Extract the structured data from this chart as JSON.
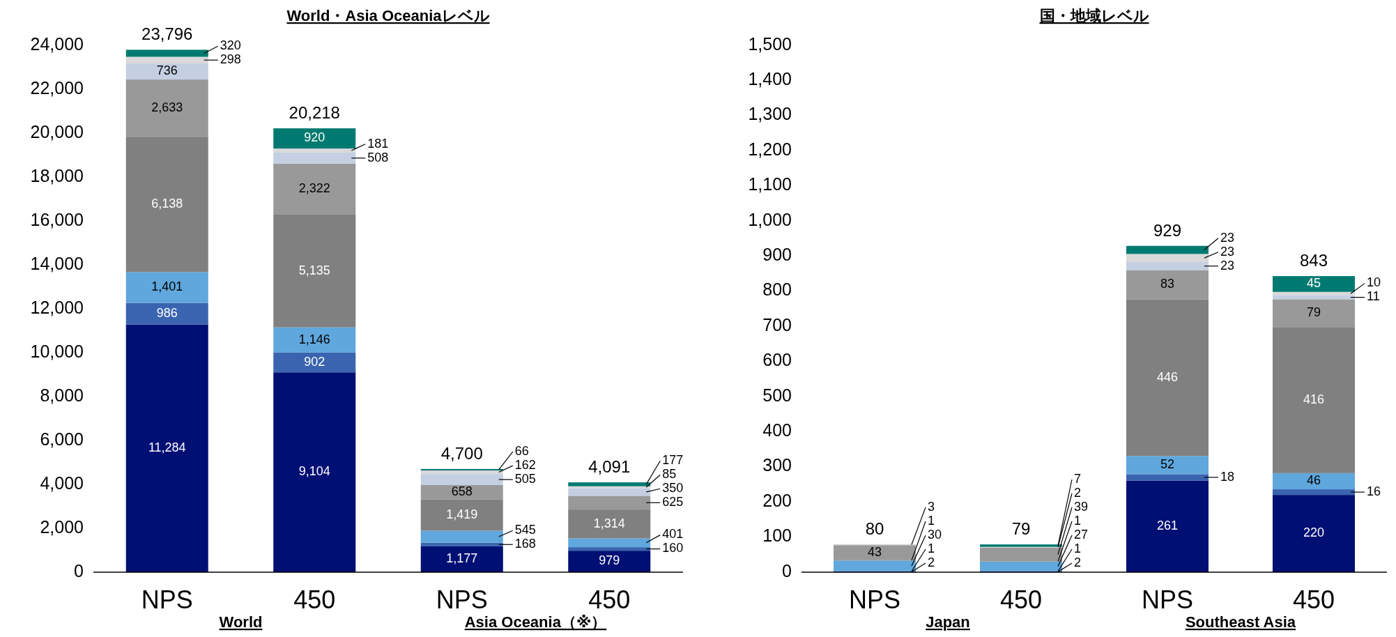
{
  "chart_data": [
    {
      "type": "bar",
      "stacked": true,
      "title": "World・Asia Oceaniaレベル",
      "categories": [
        "NPS",
        "450",
        "NPS",
        "450"
      ],
      "annotations": [
        "World",
        "Asia Oceania（※）"
      ],
      "ylim": [
        0,
        24000
      ],
      "yticks": [
        0,
        {
          "value": 2000,
          "label": "2,000"
        },
        {
          "value": 4000,
          "label": "4,000"
        },
        {
          "value": 6000,
          "label": "6,000"
        },
        {
          "value": 8000,
          "label": "8,000"
        },
        {
          "value": 10000,
          "label": "10,000"
        },
        {
          "value": 12000,
          "label": "12,000"
        },
        {
          "value": 14000,
          "label": "14,000"
        },
        {
          "value": 16000,
          "label": "16,000"
        },
        {
          "value": 18000,
          "label": "18,000"
        },
        {
          "value": 20000,
          "label": "20,000"
        },
        {
          "value": 22000,
          "label": "22,000"
        },
        {
          "value": 24000,
          "label": "24,000"
        }
      ],
      "totals": [
        "23,796",
        "20,218",
        "4,700",
        "4,091"
      ],
      "series": [
        {
          "color": "#000f73",
          "values": [
            11284,
            9104,
            1177,
            979
          ],
          "value_labels": [
            "11,284",
            "9,104",
            "1,177",
            "979"
          ]
        },
        {
          "color": "#3a64b0",
          "values": [
            986,
            902,
            168,
            160
          ],
          "value_labels": [
            "986",
            "902",
            "168",
            "160"
          ]
        },
        {
          "color": "#5fa7dc",
          "values": [
            1401,
            1146,
            545,
            401
          ],
          "value_labels": [
            "1,401",
            "1,146",
            "545",
            "401"
          ]
        },
        {
          "color": "#808080",
          "values": [
            6138,
            5135,
            1419,
            1314
          ],
          "value_labels": [
            "6,138",
            "5,135",
            "1,419",
            "1,314"
          ]
        },
        {
          "color": "#999999",
          "values": [
            2633,
            2322,
            658,
            625
          ],
          "value_labels": [
            "2,633",
            "2,322",
            "658",
            "625"
          ]
        },
        {
          "color": "#c4cfe2",
          "values": [
            736,
            508,
            505,
            350
          ],
          "value_labels": [
            "736",
            "508",
            "505",
            "350"
          ]
        },
        {
          "color": "#d9d9d9",
          "values": [
            298,
            181,
            162,
            85
          ],
          "value_labels": [
            "298",
            "181",
            "162",
            "85"
          ]
        },
        {
          "color": "#007a70",
          "values": [
            320,
            920,
            66,
            177
          ],
          "value_labels": [
            "320",
            "920",
            "66",
            "177"
          ]
        }
      ]
    },
    {
      "type": "bar",
      "stacked": true,
      "title": "国・地域レベル",
      "categories": [
        "NPS",
        "450",
        "NPS",
        "450"
      ],
      "annotations": [
        "Japan",
        "Southeast Asia"
      ],
      "ylim": [
        0,
        1500
      ],
      "yticks": [
        0,
        100,
        200,
        300,
        400,
        500,
        600,
        700,
        800,
        900,
        {
          "value": 1000,
          "label": "1,000"
        },
        {
          "value": 1100,
          "label": "1,100"
        },
        {
          "value": 1200,
          "label": "1,200"
        },
        {
          "value": 1300,
          "label": "1,300"
        },
        {
          "value": 1400,
          "label": "1,400"
        },
        {
          "value": 1500,
          "label": "1,500"
        }
      ],
      "totals": [
        "80",
        "79",
        "929",
        "843"
      ],
      "series": [
        {
          "color": "#000f73",
          "values": [
            2,
            2,
            261,
            220
          ],
          "value_labels": [
            "2",
            "2",
            "261",
            "220"
          ]
        },
        {
          "color": "#3a64b0",
          "values": [
            1,
            1,
            18,
            16
          ],
          "value_labels": [
            "1",
            "1",
            "18",
            "16"
          ]
        },
        {
          "color": "#5fa7dc",
          "values": [
            30,
            27,
            52,
            46
          ],
          "value_labels": [
            "30",
            "27",
            "52",
            "46"
          ]
        },
        {
          "color": "#808080",
          "values": [
            1,
            1,
            446,
            416
          ],
          "value_labels": [
            "1",
            "1",
            "446",
            "416"
          ]
        },
        {
          "color": "#999999",
          "values": [
            43,
            39,
            83,
            79
          ],
          "value_labels": [
            "43",
            "39",
            "83",
            "79"
          ]
        },
        {
          "color": "#c4cfe2",
          "values": [
            0,
            0,
            23,
            11
          ],
          "value_labels": [
            null,
            null,
            "23",
            "11"
          ]
        },
        {
          "color": "#d9d9d9",
          "values": [
            3,
            2,
            23,
            10
          ],
          "value_labels": [
            "3",
            "2",
            "23",
            "10"
          ]
        },
        {
          "color": "#007a70",
          "values": [
            0,
            7,
            23,
            45
          ],
          "value_labels": [
            null,
            "7",
            "23",
            "45"
          ]
        }
      ]
    }
  ]
}
